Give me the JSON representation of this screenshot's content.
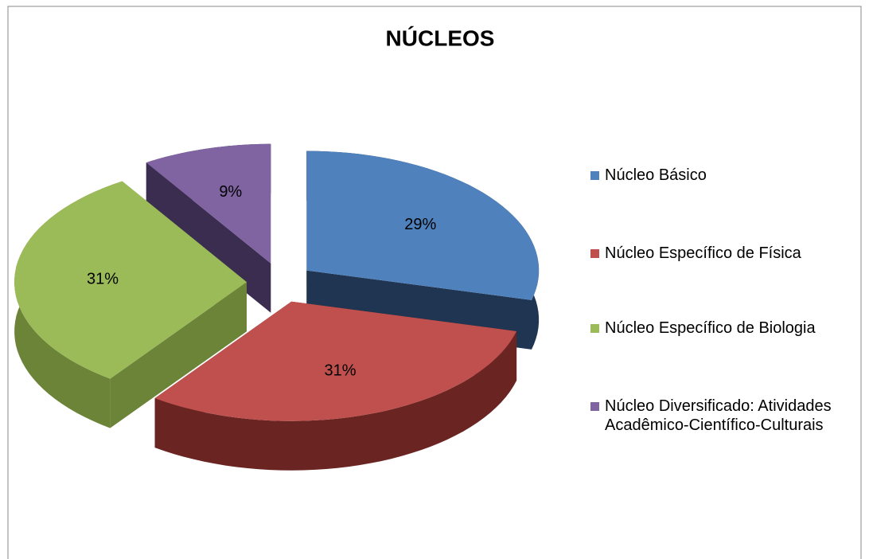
{
  "chart_data": {
    "type": "pie",
    "title": "NÚCLEOS",
    "categories": [
      "Núcleo Básico",
      "Núcleo Específico de Física",
      "Núcleo Específico de Biologia",
      "Núcleo Diversificado: Atividades Acadêmico-Científico-Culturais"
    ],
    "values": [
      29,
      31,
      31,
      9
    ],
    "value_labels": [
      "29%",
      "31%",
      "31%",
      "9%"
    ],
    "colors": [
      "#4f81bd",
      "#c0504d",
      "#9bbb59",
      "#8064a2"
    ],
    "side_colors": [
      "#1f3552",
      "#6a2523",
      "#6b8438",
      "#3a2d50"
    ],
    "legend": "right"
  }
}
